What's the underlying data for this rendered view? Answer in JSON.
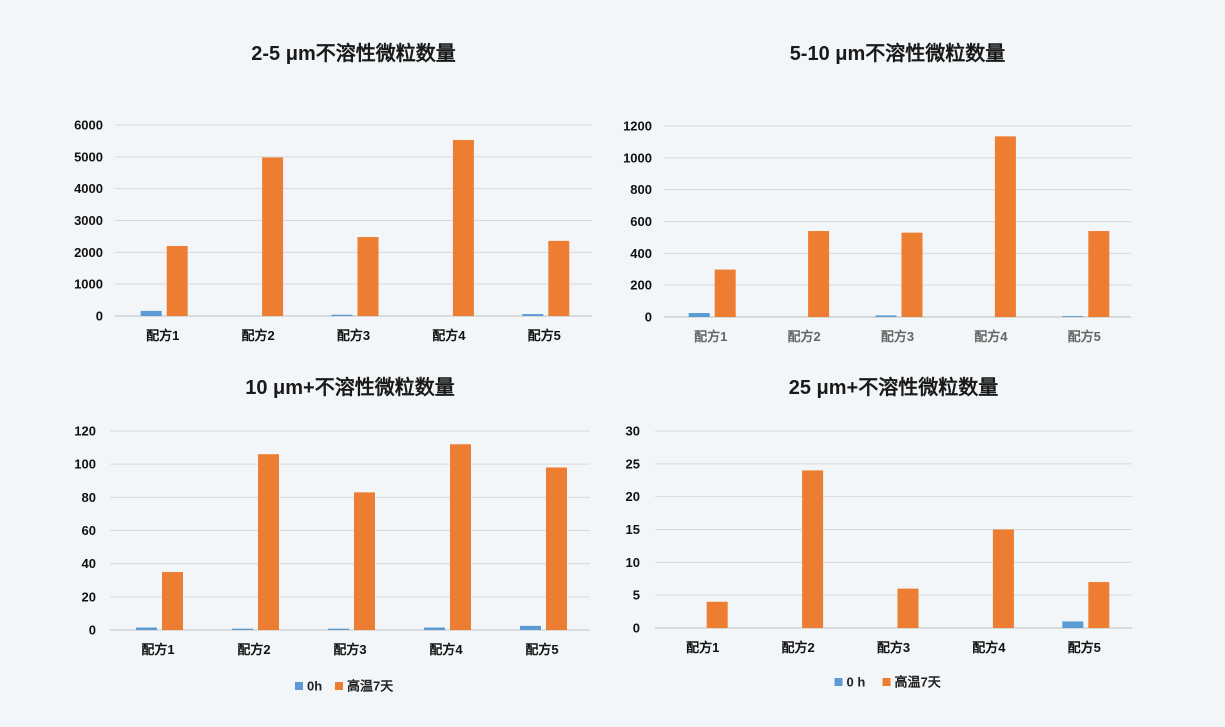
{
  "colors": {
    "series_0h": "#5b9bd5",
    "series_hot7d": "#ed7d31"
  },
  "chart_data": [
    {
      "type": "bar",
      "title": "2-5 μm不溶性微粒数量",
      "categories": [
        "配方1",
        "配方2",
        "配方3",
        "配方4",
        "配方5"
      ],
      "series": [
        {
          "name": "0 h",
          "values": [
            160,
            0,
            40,
            0,
            60
          ]
        },
        {
          "name": "高温7天",
          "values": [
            2200,
            4980,
            2480,
            5530,
            2360
          ]
        }
      ],
      "yticks": [
        "0",
        "1000",
        "2000",
        "3000",
        "4000",
        "5000",
        "6000"
      ],
      "ylim": [
        0,
        6000
      ],
      "legend_position": "bottom",
      "grid": true
    },
    {
      "type": "bar",
      "title": "5-10 μm不溶性微粒数量",
      "categories": [
        "配方1",
        "配方2",
        "配方3",
        "配方4",
        "配方5"
      ],
      "series": [
        {
          "name": "0 h",
          "values": [
            25,
            0,
            10,
            0,
            6
          ]
        },
        {
          "name": "高温7天",
          "values": [
            298,
            540,
            530,
            1135,
            540
          ]
        }
      ],
      "yticks": [
        "0",
        "200",
        "400",
        "600",
        "800",
        "1000",
        "1200"
      ],
      "ylim": [
        0,
        1200
      ],
      "legend_position": "bottom",
      "grid": true
    },
    {
      "type": "bar",
      "title": "10 μm+不溶性微粒数量",
      "categories": [
        "配方1",
        "配方2",
        "配方3",
        "配方4",
        "配方5"
      ],
      "series": [
        {
          "name": "0h",
          "values": [
            1.5,
            0.8,
            0.8,
            1.5,
            2.5
          ]
        },
        {
          "name": "高温7天",
          "values": [
            35,
            106,
            83,
            112,
            98
          ]
        }
      ],
      "yticks": [
        "0",
        "20",
        "40",
        "60",
        "80",
        "100",
        "120"
      ],
      "ylim": [
        0,
        120
      ],
      "legend_position": "bottom",
      "grid": true
    },
    {
      "type": "bar",
      "title": "25 μm+不溶性微粒数量",
      "categories": [
        "配方1",
        "配方2",
        "配方3",
        "配方4",
        "配方5"
      ],
      "series": [
        {
          "name": "0 h",
          "values": [
            0,
            0,
            0,
            0,
            1
          ]
        },
        {
          "name": "高温7天",
          "values": [
            4,
            24,
            6,
            15,
            7
          ]
        }
      ],
      "yticks": [
        "0",
        "5",
        "10",
        "15",
        "20",
        "25",
        "30"
      ],
      "ylim": [
        0,
        30
      ],
      "legend_position": "bottom",
      "grid": true
    }
  ]
}
